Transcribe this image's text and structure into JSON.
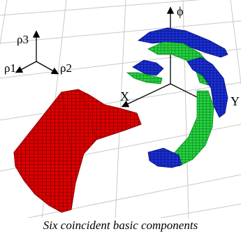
{
  "figure": {
    "caption": "Six coincident basic components",
    "left_axes": {
      "up_label": "ρ3",
      "left_label": "ρ1",
      "right_label": "ρ2"
    },
    "right_axes": {
      "phi_label": "ϕ",
      "x_label": "X",
      "y_label": "Y"
    },
    "colors": {
      "red": "#dd0000",
      "blue": "#1a2fd6",
      "green": "#22d23e",
      "grid": "#c8c8c8"
    }
  }
}
